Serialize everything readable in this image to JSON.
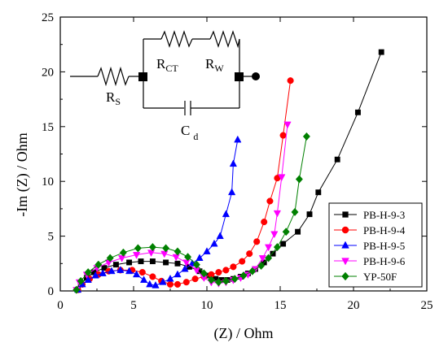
{
  "chart_data": {
    "type": "scatter",
    "xlabel": "(Z) / Ohm",
    "ylabel": "-Im (Z) / Ohm",
    "xlim": [
      0,
      25
    ],
    "ylim": [
      0,
      25
    ],
    "x_ticks": [
      "0",
      "5",
      "10",
      "15",
      "20",
      "25"
    ],
    "y_ticks": [
      "0",
      "5",
      "10",
      "15",
      "20",
      "25"
    ],
    "legend_position": "bottom-right",
    "grid": false,
    "series": [
      {
        "name": "PB-H-9-3",
        "marker": "square",
        "color": "#000000",
        "points": [
          [
            1.2,
            0.1
          ],
          [
            1.4,
            0.6
          ],
          [
            1.8,
            1.2
          ],
          [
            2.3,
            1.7
          ],
          [
            3,
            2.1
          ],
          [
            3.8,
            2.4
          ],
          [
            4.7,
            2.6
          ],
          [
            5.5,
            2.7
          ],
          [
            6.3,
            2.7
          ],
          [
            7.2,
            2.6
          ],
          [
            8,
            2.5
          ],
          [
            8.8,
            2.2
          ],
          [
            9.5,
            1.8
          ],
          [
            10.1,
            1.4
          ],
          [
            10.6,
            1.1
          ],
          [
            11,
            1.0
          ],
          [
            11.4,
            1.0
          ],
          [
            11.8,
            1.1
          ],
          [
            12.3,
            1.3
          ],
          [
            12.8,
            1.6
          ],
          [
            13.3,
            2.0
          ],
          [
            13.9,
            2.6
          ],
          [
            14.5,
            3.4
          ],
          [
            15.2,
            4.3
          ],
          [
            16.2,
            5.4
          ],
          [
            17,
            7.0
          ],
          [
            17.6,
            9.0
          ],
          [
            18.9,
            12.0
          ],
          [
            20.3,
            16.3
          ],
          [
            21.9,
            21.8
          ]
        ]
      },
      {
        "name": "PB-H-9-4",
        "marker": "circle",
        "color": "#ff0000",
        "points": [
          [
            1.2,
            0.1
          ],
          [
            1.5,
            0.6
          ],
          [
            2,
            1.1
          ],
          [
            2.6,
            1.5
          ],
          [
            3.3,
            1.8
          ],
          [
            4.1,
            1.9
          ],
          [
            4.9,
            1.9
          ],
          [
            5.6,
            1.7
          ],
          [
            6.3,
            1.3
          ],
          [
            6.9,
            0.9
          ],
          [
            7.5,
            0.6
          ],
          [
            8,
            0.6
          ],
          [
            8.6,
            0.8
          ],
          [
            9.2,
            1.1
          ],
          [
            9.8,
            1.3
          ],
          [
            10.3,
            1.5
          ],
          [
            10.8,
            1.7
          ],
          [
            11.3,
            1.9
          ],
          [
            11.8,
            2.2
          ],
          [
            12.4,
            2.7
          ],
          [
            12.9,
            3.4
          ],
          [
            13.4,
            4.5
          ],
          [
            13.9,
            6.3
          ],
          [
            14.3,
            8.2
          ],
          [
            14.8,
            10.3
          ],
          [
            15.2,
            14.2
          ],
          [
            15.7,
            19.2
          ]
        ]
      },
      {
        "name": "PB-H-9-5",
        "marker": "triangle-up",
        "color": "#0000ff",
        "points": [
          [
            1.2,
            0.1
          ],
          [
            1.5,
            0.6
          ],
          [
            1.9,
            1.0
          ],
          [
            2.4,
            1.4
          ],
          [
            2.9,
            1.6
          ],
          [
            3.5,
            1.8
          ],
          [
            4.1,
            1.9
          ],
          [
            4.7,
            1.8
          ],
          [
            5.2,
            1.5
          ],
          [
            5.7,
            1.0
          ],
          [
            6.1,
            0.6
          ],
          [
            6.5,
            0.5
          ],
          [
            7,
            0.8
          ],
          [
            7.5,
            1.1
          ],
          [
            8,
            1.5
          ],
          [
            8.5,
            2.0
          ],
          [
            9,
            2.5
          ],
          [
            9.5,
            3.0
          ],
          [
            10,
            3.6
          ],
          [
            10.5,
            4.3
          ],
          [
            10.9,
            5.0
          ],
          [
            11.3,
            7.0
          ],
          [
            11.7,
            9.0
          ],
          [
            11.8,
            11.6
          ],
          [
            12.1,
            13.8
          ]
        ]
      },
      {
        "name": "PB-H-9-6",
        "marker": "triangle-down",
        "color": "#ff00ff",
        "points": [
          [
            1.1,
            0.1
          ],
          [
            1.3,
            0.8
          ],
          [
            1.8,
            1.5
          ],
          [
            2.5,
            2.1
          ],
          [
            3.3,
            2.6
          ],
          [
            4.2,
            3.0
          ],
          [
            5.2,
            3.3
          ],
          [
            6.2,
            3.5
          ],
          [
            7.1,
            3.4
          ],
          [
            7.9,
            3.1
          ],
          [
            8.6,
            2.6
          ],
          [
            9.3,
            1.9
          ],
          [
            9.8,
            1.2
          ],
          [
            10.3,
            0.8
          ],
          [
            10.8,
            0.7
          ],
          [
            11.3,
            0.8
          ],
          [
            11.8,
            1.0
          ],
          [
            12.3,
            1.2
          ],
          [
            12.8,
            1.5
          ],
          [
            13.3,
            2.0
          ],
          [
            13.8,
            3.0
          ],
          [
            14.2,
            4.0
          ],
          [
            14.6,
            5.2
          ],
          [
            14.8,
            7.1
          ],
          [
            15.1,
            10.4
          ],
          [
            15.5,
            15.2
          ]
        ]
      },
      {
        "name": "YP-50F",
        "marker": "diamond",
        "color": "#008000",
        "points": [
          [
            1.1,
            0.1
          ],
          [
            1.4,
            0.9
          ],
          [
            1.9,
            1.7
          ],
          [
            2.6,
            2.4
          ],
          [
            3.4,
            3.0
          ],
          [
            4.3,
            3.5
          ],
          [
            5.3,
            3.9
          ],
          [
            6.3,
            4.0
          ],
          [
            7.2,
            3.9
          ],
          [
            8,
            3.6
          ],
          [
            8.7,
            3.1
          ],
          [
            9.3,
            2.4
          ],
          [
            9.8,
            1.6
          ],
          [
            10.3,
            1.0
          ],
          [
            10.8,
            0.8
          ],
          [
            11.3,
            0.9
          ],
          [
            11.9,
            1.1
          ],
          [
            12.5,
            1.4
          ],
          [
            13.1,
            1.8
          ],
          [
            13.7,
            2.3
          ],
          [
            14.2,
            3.0
          ],
          [
            14.8,
            4.0
          ],
          [
            15.4,
            5.4
          ],
          [
            16.0,
            7.2
          ],
          [
            16.3,
            10.2
          ],
          [
            16.8,
            14.1
          ]
        ]
      }
    ],
    "annotations": {
      "rs_label": "R",
      "rs_sub": "S",
      "rct_label": "R",
      "rct_sub": "CT",
      "rw_label": "R",
      "rw_sub": "W",
      "cd_label": "C",
      "cd_sub": "d"
    }
  }
}
